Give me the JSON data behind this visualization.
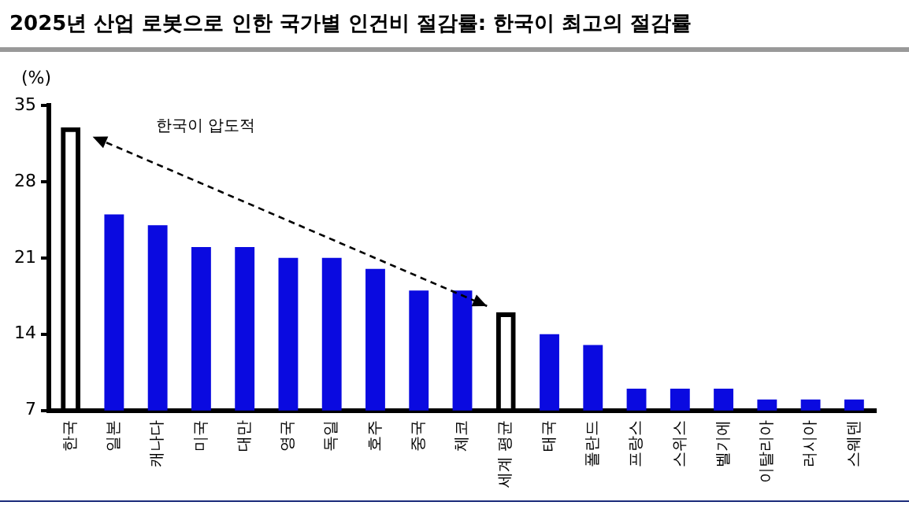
{
  "chart_data": {
    "type": "bar",
    "title": "2025년 산업 로봇으로 인한 국가별 인건비 절감률: 한국이 최고의 절감률",
    "ylabel": "(%)",
    "categories": [
      "한국",
      "일본",
      "캐나다",
      "미국",
      "대만",
      "영국",
      "독일",
      "호주",
      "중국",
      "체코",
      "세계 평균",
      "태국",
      "폴란드",
      "프랑스",
      "스위스",
      "벨기에",
      "이탈리아",
      "러시아",
      "스웨덴"
    ],
    "values": [
      33,
      25,
      24,
      22,
      22,
      21,
      21,
      20,
      18,
      18,
      16,
      14,
      13,
      9,
      9,
      9,
      8,
      8,
      8
    ],
    "colors": [
      "#000000",
      "#0a0ae0",
      "#0a0ae0",
      "#0a0ae0",
      "#0a0ae0",
      "#0a0ae0",
      "#0a0ae0",
      "#0a0ae0",
      "#0a0ae0",
      "#0a0ae0",
      "#000000",
      "#0a0ae0",
      "#0a0ae0",
      "#0a0ae0",
      "#0a0ae0",
      "#0a0ae0",
      "#0a0ae0",
      "#0a0ae0",
      "#0a0ae0"
    ],
    "ylim": [
      7,
      35
    ],
    "yticks": [
      7,
      14,
      21,
      28,
      35
    ],
    "grid": false,
    "legend": false,
    "annotations": [
      "한국이 압도적"
    ]
  }
}
